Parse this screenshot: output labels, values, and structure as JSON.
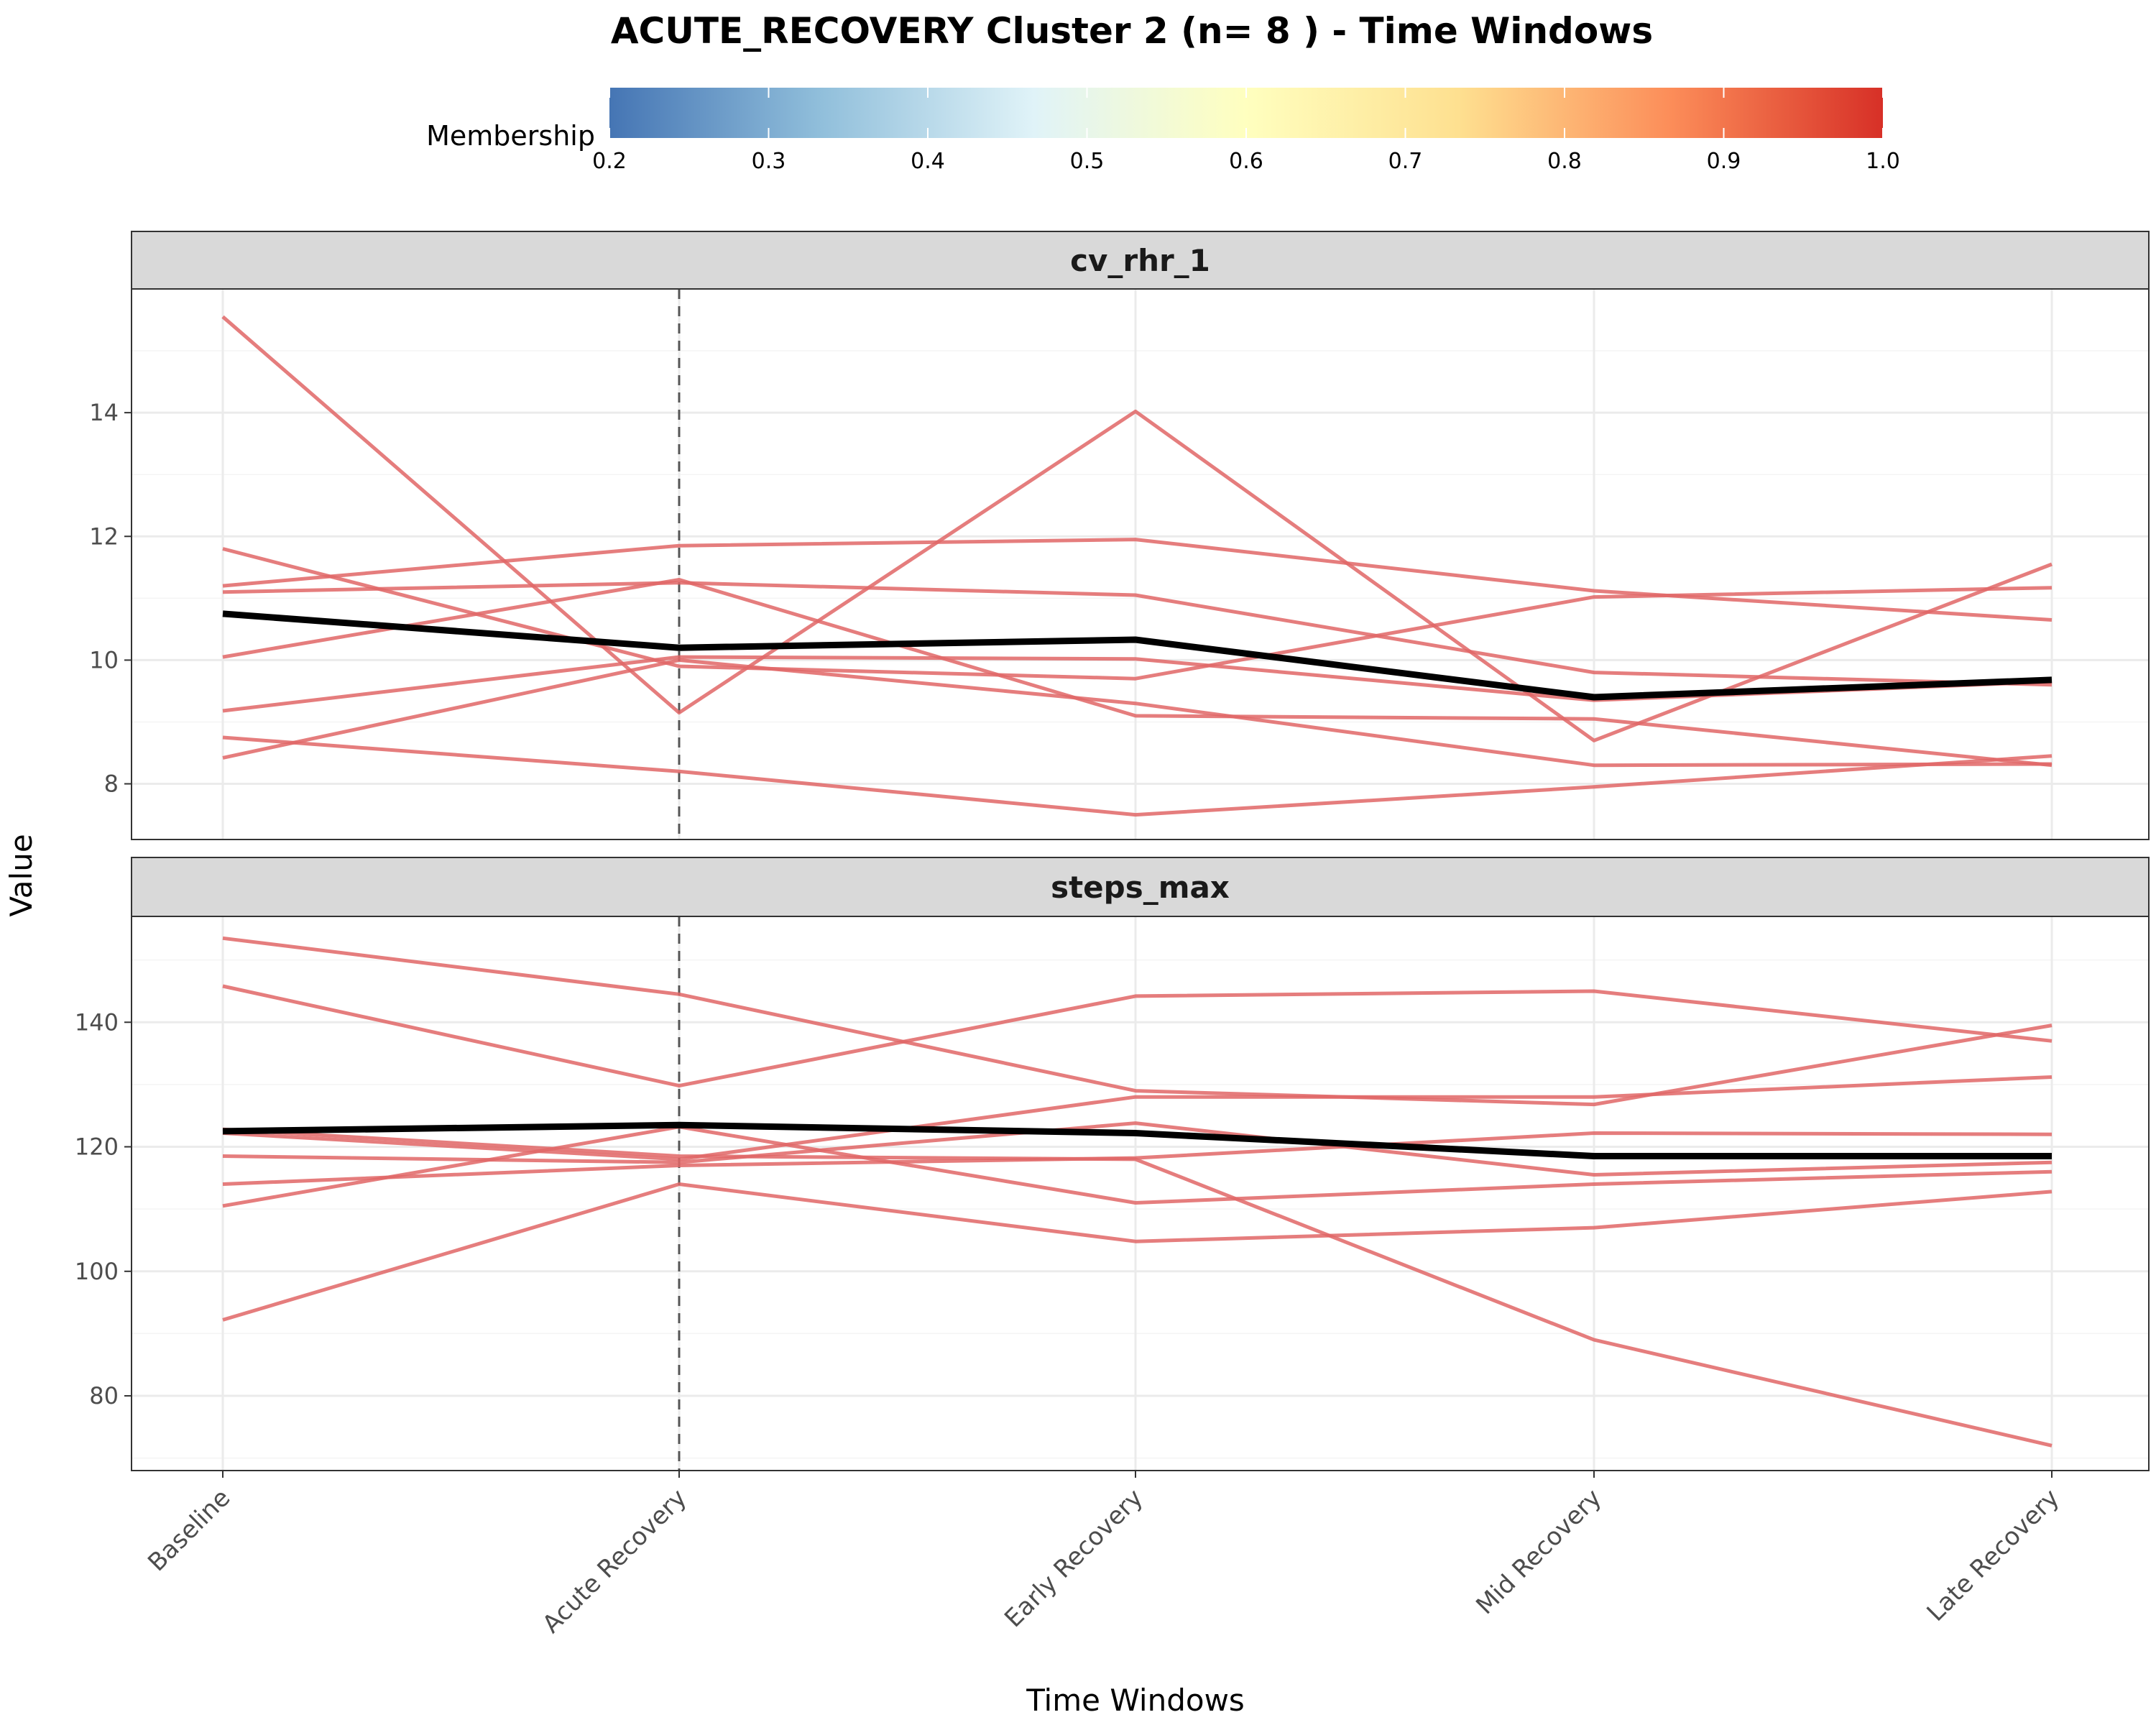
{
  "chart_data": {
    "type": "line",
    "title": "ACUTE_RECOVERY Cluster 2 (n= 8 ) - Time Windows",
    "xlabel": "Time Windows",
    "ylabel": "Value",
    "categories": [
      "Baseline",
      "Acute Recovery",
      "Early Recovery",
      "Mid Recovery",
      "Late Recovery"
    ],
    "reference_line": {
      "category": "Acute Recovery",
      "style": "dashed"
    },
    "legend": {
      "title": "Membership",
      "position": "top",
      "range": [
        0.2,
        1.0
      ],
      "ticks": [
        "0.2",
        "0.3",
        "0.4",
        "0.5",
        "0.6",
        "0.7",
        "0.8",
        "0.9",
        "1.0"
      ],
      "colors": [
        "#4575b4",
        "#91bfdb",
        "#e0f3f8",
        "#ffffbf",
        "#fee090",
        "#fc8d59",
        "#d73027"
      ]
    },
    "member_color": "#e06666",
    "mean_color": "#000000",
    "panels": [
      {
        "name": "cv_rhr_1",
        "ylim": [
          7.1,
          16.0
        ],
        "yticks": [
          8,
          10,
          12,
          14
        ],
        "yticks_labels": [
          "8",
          "10",
          "12",
          "14"
        ],
        "members": [
          [
            15.55,
            9.15,
            14.02,
            8.7,
            11.55
          ],
          [
            11.8,
            9.9,
            9.7,
            11.02,
            11.17
          ],
          [
            11.1,
            11.25,
            11.05,
            9.8,
            9.6
          ],
          [
            11.2,
            11.85,
            11.95,
            11.12,
            10.65
          ],
          [
            10.05,
            11.3,
            9.1,
            9.05,
            8.3
          ],
          [
            9.18,
            10.05,
            10.02,
            9.35,
            9.65
          ],
          [
            8.42,
            10.0,
            9.3,
            8.3,
            8.32
          ],
          [
            8.75,
            8.2,
            7.5,
            7.95,
            8.45
          ]
        ],
        "mean": [
          10.75,
          10.2,
          10.33,
          9.4,
          9.68
        ]
      },
      {
        "name": "steps_max",
        "ylim": [
          68,
          157
        ],
        "yticks": [
          80,
          100,
          120,
          140
        ],
        "yticks_labels": [
          "80",
          "100",
          "120",
          "140"
        ],
        "members": [
          [
            153.5,
            144.5,
            129.0,
            126.8,
            139.5
          ],
          [
            145.8,
            129.8,
            144.2,
            145.0,
            137.0
          ],
          [
            122.2,
            118.0,
            128.0,
            128.0,
            131.2
          ],
          [
            118.5,
            117.5,
            123.8,
            115.5,
            117.5
          ],
          [
            114.0,
            117.0,
            118.2,
            122.2,
            122.0
          ],
          [
            110.5,
            123.2,
            111.0,
            114.0,
            116.0
          ],
          [
            92.2,
            114.0,
            104.8,
            107.0,
            112.8
          ],
          [
            122.8,
            118.5,
            118.0,
            89.0,
            72.0
          ]
        ],
        "mean": [
          122.5,
          123.5,
          122.2,
          118.5,
          118.5
        ]
      }
    ]
  }
}
